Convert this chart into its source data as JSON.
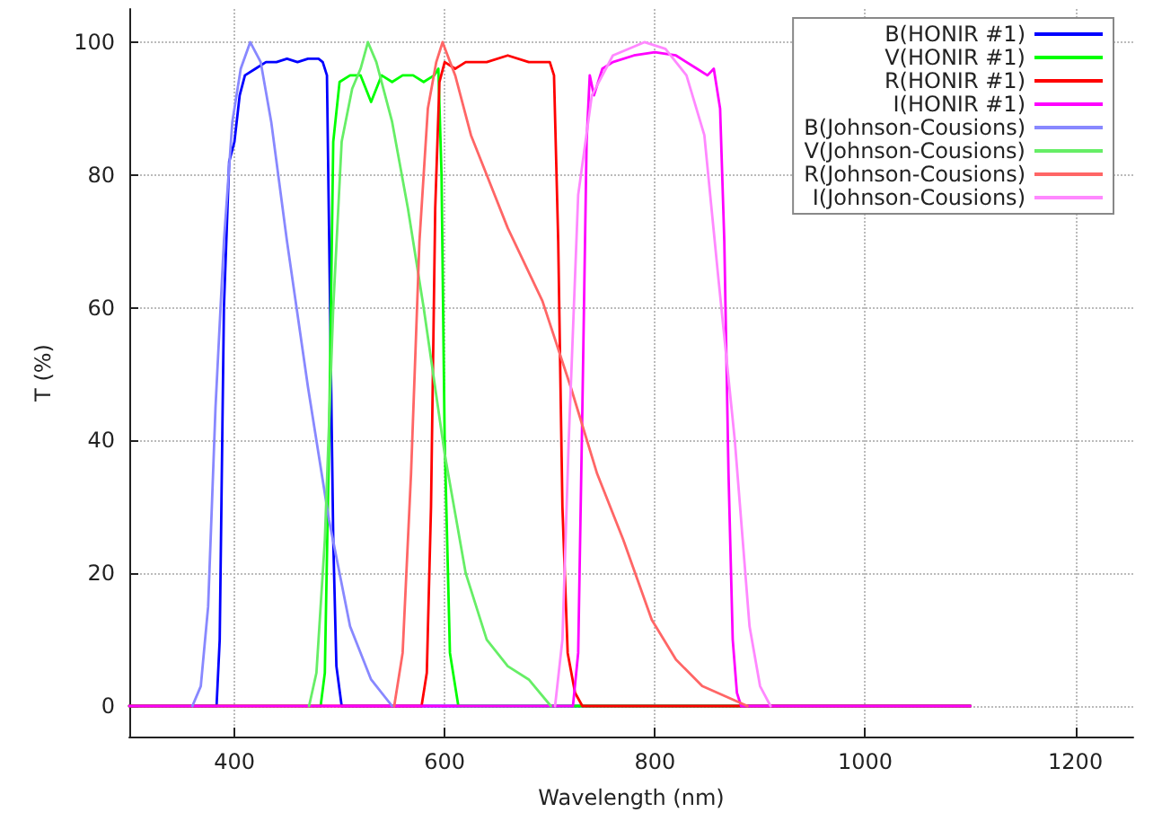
{
  "chart_data": {
    "type": "line",
    "xlabel": "Wavelength (nm)",
    "ylabel": "T (%)",
    "xlim": [
      300,
      1255
    ],
    "xticks": [
      400,
      600,
      800,
      1000,
      1200
    ],
    "ylim": [
      -4.6,
      105
    ],
    "yticks": [
      0,
      20,
      40,
      60,
      80,
      100
    ],
    "grid": true,
    "legend": "top right",
    "marker": "none",
    "line_style": "solid",
    "series": [
      {
        "name": "B(HONIR #1)",
        "color": "#0000ff",
        "x": [
          300,
          383,
          386,
          390,
          395,
          400,
          405,
          410,
          420,
          430,
          440,
          450,
          460,
          470,
          480,
          484,
          488,
          491,
          494,
          497,
          502,
          1100
        ],
        "values": [
          0,
          0,
          10,
          60,
          82,
          85,
          92,
          95,
          96,
          97,
          97,
          97.5,
          97,
          97.5,
          97.5,
          97,
          95,
          60,
          25,
          6,
          0,
          0
        ]
      },
      {
        "name": "V(HONIR #1)",
        "color": "#00ff00",
        "x": [
          300,
          482,
          486,
          490,
          494,
          500,
          510,
          520,
          525,
          530,
          540,
          550,
          560,
          570,
          580,
          590,
          594,
          597,
          600,
          605,
          613,
          1100
        ],
        "values": [
          0,
          0,
          5,
          40,
          85,
          94,
          95,
          95,
          93,
          91,
          95,
          94,
          95,
          95,
          94,
          95,
          96,
          80,
          40,
          8,
          0,
          0
        ]
      },
      {
        "name": "R(HONIR #1)",
        "color": "#ff0000",
        "x": [
          300,
          578,
          583,
          587,
          591,
          595,
          600,
          610,
          620,
          640,
          660,
          680,
          690,
          700,
          704,
          708,
          712,
          717,
          724,
          731,
          1100
        ],
        "values": [
          0,
          0,
          5,
          30,
          75,
          94,
          97,
          96,
          97,
          97,
          98,
          97,
          97,
          97,
          95,
          70,
          30,
          8,
          2,
          0,
          0
        ]
      },
      {
        "name": "I(HONIR #1)",
        "color": "#ff00ff",
        "x": [
          300,
          722,
          727,
          731,
          735,
          738,
          742,
          750,
          760,
          780,
          800,
          820,
          840,
          850,
          856,
          862,
          866,
          870,
          874,
          878,
          882,
          1100
        ],
        "values": [
          0,
          0,
          8,
          45,
          85,
          95,
          92,
          96,
          97,
          98,
          98.5,
          98,
          96,
          95,
          96,
          90,
          70,
          35,
          10,
          2,
          0,
          0
        ]
      },
      {
        "name": "B(Johnson-Cousions)",
        "color": "#8888ff",
        "x": [
          360,
          368,
          375,
          382,
          390,
          398,
          406,
          415,
          425,
          435,
          450,
          470,
          490,
          510,
          530,
          550
        ],
        "values": [
          0,
          3,
          15,
          45,
          70,
          88,
          96,
          100,
          97,
          88,
          70,
          48,
          28,
          12,
          4,
          0
        ]
      },
      {
        "name": "V(Johnson-Cousions)",
        "color": "#66ee66",
        "x": [
          471,
          478,
          486,
          494,
          502,
          512,
          520,
          527,
          535,
          550,
          565,
          580,
          600,
          620,
          640,
          660,
          680,
          701
        ],
        "values": [
          0,
          5,
          25,
          60,
          85,
          93,
          96,
          100,
          97,
          88,
          75,
          60,
          38,
          20,
          10,
          6,
          4,
          0
        ]
      },
      {
        "name": "R(Johnson-Cousions)",
        "color": "#ff6666",
        "x": [
          552,
          560,
          568,
          576,
          584,
          592,
          598,
          610,
          625,
          640,
          660,
          693,
          720,
          745,
          770,
          797,
          820,
          845,
          888
        ],
        "values": [
          0,
          8,
          35,
          70,
          90,
          97,
          100,
          95,
          86,
          80,
          72,
          61,
          48,
          35,
          25,
          13,
          7,
          3,
          0
        ]
      },
      {
        "name": "I(Johnson-Cousions)",
        "color": "#ff88ff",
        "x": [
          705,
          712,
          718,
          727,
          740,
          760,
          790,
          810,
          830,
          847,
          860,
          876,
          890,
          900,
          910
        ],
        "values": [
          0,
          10,
          40,
          77,
          92,
          98,
          100,
          99,
          95,
          86,
          65,
          40,
          12,
          3,
          0
        ]
      }
    ]
  }
}
